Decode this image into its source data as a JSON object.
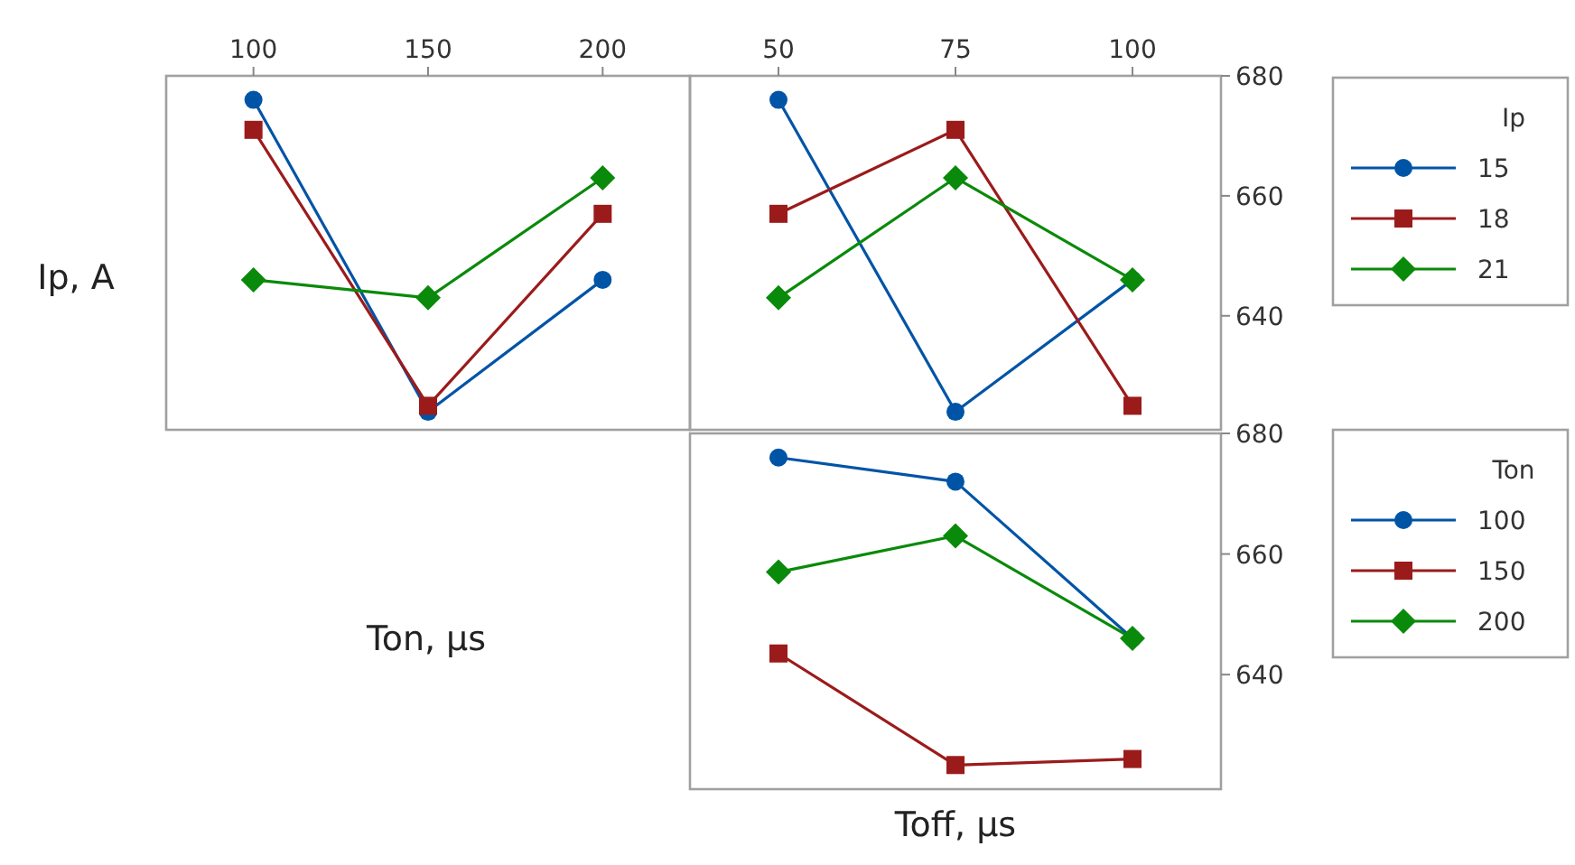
{
  "chart_data": [
    {
      "type": "line",
      "xlabel": "Ton, μs",
      "ylabel": "Ip, A",
      "categories": [
        "100",
        "150",
        "200"
      ],
      "ylim": [
        621,
        680
      ],
      "tick_labels": "x",
      "legend": false,
      "series": [
        {
          "color": "#0054a6",
          "marker": "circle",
          "values": [
            676,
            624,
            646
          ]
        },
        {
          "color": "#9b1b1b",
          "marker": "square",
          "values": [
            671,
            625,
            657
          ]
        },
        {
          "color": "#0a8a0a",
          "marker": "diamond",
          "values": [
            646,
            643,
            663
          ]
        }
      ]
    },
    {
      "type": "line",
      "categories": [
        "50",
        "75",
        "100"
      ],
      "ylim": [
        621,
        680
      ],
      "yticks": [
        640,
        660,
        680
      ],
      "legend": "right",
      "legend_title": "Ip",
      "series": [
        {
          "name": "15",
          "color": "#0054a6",
          "marker": "circle",
          "values": [
            676,
            624,
            646
          ]
        },
        {
          "name": "18",
          "color": "#9b1b1b",
          "marker": "square",
          "values": [
            657,
            671,
            625
          ]
        },
        {
          "name": "21",
          "color": "#0a8a0a",
          "marker": "diamond",
          "values": [
            643,
            663,
            646
          ]
        }
      ]
    },
    {
      "type": "line",
      "xlabel": "Toff, μs",
      "categories": [
        null,
        null,
        null
      ],
      "ylim": [
        621,
        680
      ],
      "yticks": [
        640,
        660,
        680
      ],
      "tick_labels": "y",
      "legend": "right",
      "legend_title": "Ton",
      "series": [
        {
          "name": "100",
          "color": "#0054a6",
          "marker": "circle",
          "values": [
            676,
            672,
            646
          ]
        },
        {
          "name": "150",
          "color": "#9b1b1b",
          "marker": "square",
          "values": [
            643.5,
            625,
            626
          ]
        },
        {
          "name": "200",
          "color": "#0a8a0a",
          "marker": "diamond",
          "values": [
            657,
            663,
            646
          ]
        }
      ]
    }
  ]
}
